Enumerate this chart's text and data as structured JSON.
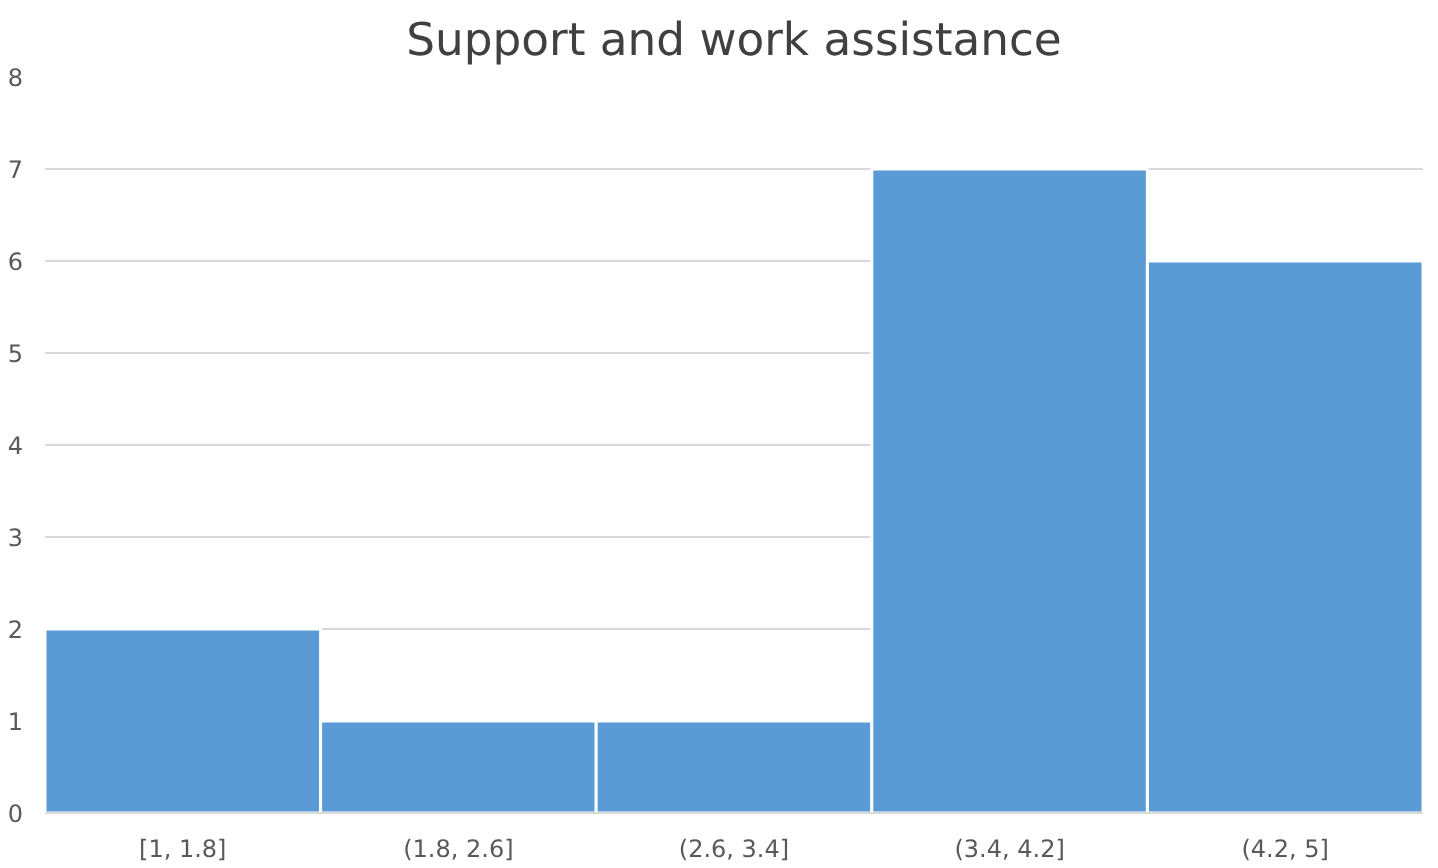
{
  "chart_data": {
    "type": "bar",
    "title": "Support and work assistance",
    "categories": [
      "[1, 1.8]",
      "(1.8, 2.6]",
      "(2.6, 3.4]",
      "(3.4, 4.2]",
      "(4.2, 5]"
    ],
    "values": [
      2,
      1,
      1,
      7,
      6
    ],
    "color": "#5b9bd5",
    "ylim": [
      0,
      8
    ],
    "yticks": [
      0,
      1,
      2,
      3,
      4,
      5,
      6,
      7,
      8
    ],
    "grid": "y"
  }
}
